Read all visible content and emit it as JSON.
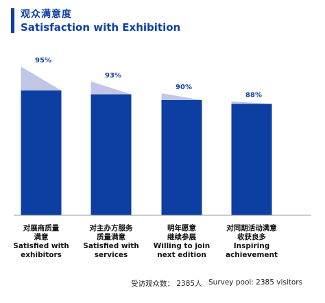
{
  "title": {
    "cn": "观众满意度",
    "en": "Satisfaction with Exhibition"
  },
  "colors": {
    "accent": "#0d3fa3",
    "shadow": "#c2c6e6"
  },
  "chart_data": {
    "type": "bar",
    "ylim": [
      0,
      100
    ],
    "value_labels": [
      "95%",
      "93%",
      "90%",
      "88%"
    ],
    "values": [
      95,
      93,
      90,
      88
    ],
    "categories": [
      {
        "cn": [
          "对展商质量",
          "满意"
        ],
        "en": [
          "Satisfied with",
          "exhibitors"
        ]
      },
      {
        "cn": [
          "对主办方服务",
          "质量满意"
        ],
        "en": [
          "Satisfied with",
          "services"
        ]
      },
      {
        "cn": [
          "明年愿意",
          "继续参展"
        ],
        "en": [
          "Willing to join",
          "next edition"
        ]
      },
      {
        "cn": [
          "对同期活动满意",
          "收获良多"
        ],
        "en": [
          "Inspiring",
          "achievement"
        ]
      }
    ]
  },
  "footer": {
    "cn": "受访观众数： 2385人",
    "en": "Survey pool: 2385 visitors"
  }
}
